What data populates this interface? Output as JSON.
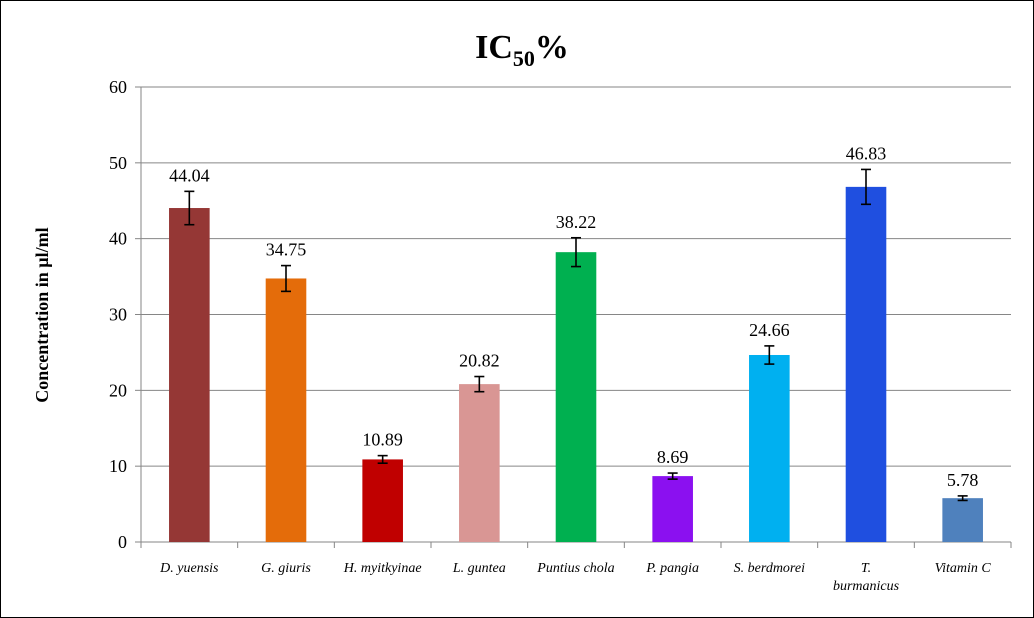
{
  "chart_data": {
    "type": "bar",
    "title": "IC",
    "title_subscript": "50",
    "title_suffix": "%",
    "ylabel": "Concentration in µl/ml",
    "xlabel": "",
    "ylim": [
      0,
      60
    ],
    "yticks": [
      0,
      10,
      20,
      30,
      40,
      50,
      60
    ],
    "ytick_labels": [
      "0",
      "10",
      "20",
      "30",
      "40",
      "50",
      "60"
    ],
    "grid": true,
    "legend": "none",
    "categories": [
      [
        "D. yuensis"
      ],
      [
        "G. giuris"
      ],
      [
        "H. myitkyinae"
      ],
      [
        "L. guntea"
      ],
      [
        "Puntius chola"
      ],
      [
        "P. pangia"
      ],
      [
        "S. berdmorei"
      ],
      [
        "T.",
        "burmanicus"
      ],
      [
        "Vitamin C"
      ]
    ],
    "values": [
      44.04,
      34.75,
      10.89,
      20.82,
      38.22,
      8.69,
      24.66,
      46.83,
      5.78
    ],
    "value_labels": [
      "44.04",
      "34.75",
      "10.89",
      "20.82",
      "38.22",
      "8.69",
      "24.66",
      "46.83",
      "5.78"
    ],
    "error": [
      2.2,
      1.7,
      0.5,
      1.0,
      1.9,
      0.4,
      1.2,
      2.3,
      0.3
    ],
    "colors": [
      "#953735",
      "#E46C0A",
      "#C00000",
      "#D99694",
      "#00B050",
      "#8B10F0",
      "#00B0F0",
      "#1F4FE0",
      "#4F81BD"
    ]
  }
}
